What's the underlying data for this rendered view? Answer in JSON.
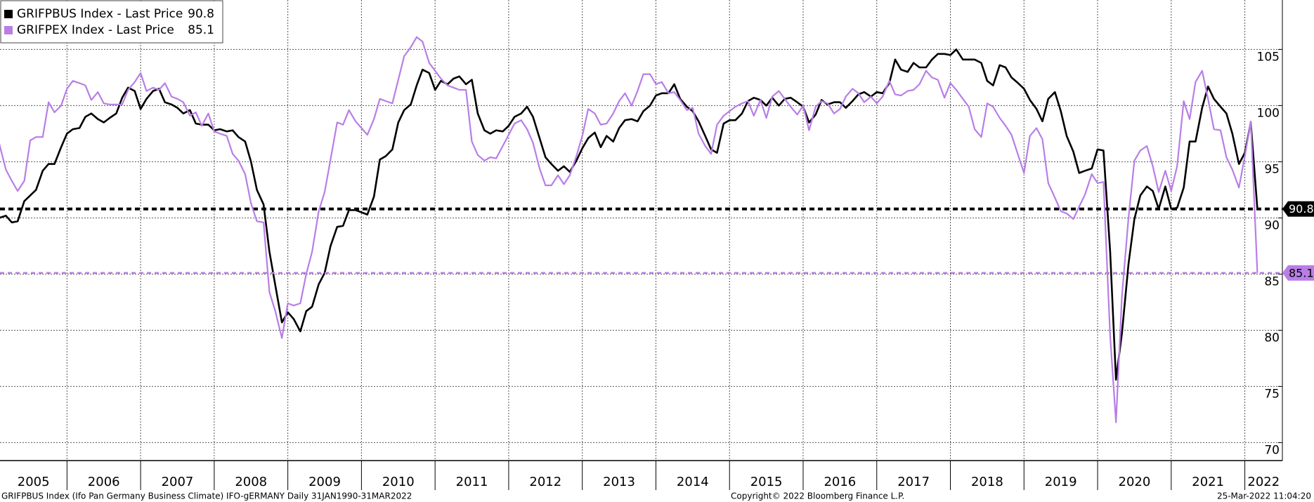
{
  "chart_data": {
    "type": "line",
    "x": [
      2005.08,
      2005.17,
      2005.25,
      2005.33,
      2005.42,
      2005.5,
      2005.58,
      2005.67,
      2005.75,
      2005.83,
      2005.92,
      2006,
      2006.08,
      2006.17,
      2006.25,
      2006.33,
      2006.42,
      2006.5,
      2006.58,
      2006.67,
      2006.75,
      2006.83,
      2006.92,
      2007,
      2007.08,
      2007.17,
      2007.25,
      2007.33,
      2007.42,
      2007.5,
      2007.58,
      2007.67,
      2007.75,
      2007.83,
      2007.92,
      2008,
      2008.08,
      2008.17,
      2008.25,
      2008.33,
      2008.42,
      2008.5,
      2008.58,
      2008.67,
      2008.75,
      2008.83,
      2008.92,
      2009,
      2009.08,
      2009.17,
      2009.25,
      2009.33,
      2009.42,
      2009.5,
      2009.58,
      2009.67,
      2009.75,
      2009.83,
      2009.92,
      2010,
      2010.08,
      2010.17,
      2010.25,
      2010.33,
      2010.42,
      2010.5,
      2010.58,
      2010.67,
      2010.75,
      2010.83,
      2010.92,
      2011,
      2011.08,
      2011.17,
      2011.25,
      2011.33,
      2011.42,
      2011.5,
      2011.58,
      2011.67,
      2011.75,
      2011.83,
      2011.92,
      2012,
      2012.08,
      2012.17,
      2012.25,
      2012.33,
      2012.42,
      2012.5,
      2012.58,
      2012.67,
      2012.75,
      2012.83,
      2012.92,
      2013,
      2013.08,
      2013.17,
      2013.25,
      2013.33,
      2013.42,
      2013.5,
      2013.58,
      2013.67,
      2013.75,
      2013.83,
      2013.92,
      2014,
      2014.08,
      2014.17,
      2014.25,
      2014.33,
      2014.42,
      2014.5,
      2014.58,
      2014.67,
      2014.75,
      2014.83,
      2014.92,
      2015,
      2015.08,
      2015.17,
      2015.25,
      2015.33,
      2015.42,
      2015.5,
      2015.58,
      2015.67,
      2015.75,
      2015.83,
      2015.92,
      2016,
      2016.08,
      2016.17,
      2016.25,
      2016.33,
      2016.42,
      2016.5,
      2016.58,
      2016.67,
      2016.75,
      2016.83,
      2016.92,
      2017,
      2017.08,
      2017.17,
      2017.25,
      2017.33,
      2017.42,
      2017.5,
      2017.58,
      2017.67,
      2017.75,
      2017.83,
      2017.92,
      2018,
      2018.08,
      2018.17,
      2018.25,
      2018.33,
      2018.42,
      2018.5,
      2018.58,
      2018.67,
      2018.75,
      2018.83,
      2018.92,
      2019,
      2019.08,
      2019.17,
      2019.25,
      2019.33,
      2019.42,
      2019.5,
      2019.58,
      2019.67,
      2019.75,
      2019.83,
      2019.92,
      2020,
      2020.08,
      2020.17,
      2020.25,
      2020.33,
      2020.42,
      2020.5,
      2020.58,
      2020.67,
      2020.75,
      2020.83,
      2020.92,
      2021,
      2021.08,
      2021.17,
      2021.25,
      2021.33,
      2021.42,
      2021.5,
      2021.58,
      2021.67,
      2021.75,
      2021.83,
      2021.92,
      2022,
      2022.08,
      2022.17
    ],
    "series": [
      {
        "name": "GRIFPBUS Index - Last Price",
        "color": "#000000",
        "values": [
          90,
          90.2,
          89.6,
          89.7,
          91.5,
          92,
          92.5,
          94.2,
          94.8,
          94.8,
          96.3,
          97.5,
          97.9,
          98,
          99,
          99.3,
          98.8,
          98.5,
          98.9,
          99.3,
          100.7,
          101.6,
          101.3,
          99.7,
          100.6,
          101.3,
          101.5,
          100.3,
          100.1,
          99.8,
          99.3,
          99.6,
          98.4,
          98.3,
          98.3,
          97.8,
          97.9,
          97.7,
          97.8,
          97.2,
          96.8,
          95,
          92.5,
          91.2,
          87,
          84,
          80.7,
          81.6,
          81,
          79.9,
          81.7,
          82.1,
          84.1,
          85.1,
          87.5,
          89.2,
          89.3,
          90.7,
          90.7,
          90.5,
          90.3,
          91.9,
          95.2,
          95.5,
          96.1,
          98.5,
          99.6,
          100.1,
          101.8,
          103.2,
          102.9,
          101.4,
          102.2,
          101.9,
          102.4,
          102.6,
          101.9,
          102.3,
          99.3,
          97.8,
          97.5,
          97.8,
          97.7,
          98.2,
          99,
          99.3,
          99.9,
          99,
          97.1,
          95.4,
          94.8,
          94.2,
          94.6,
          94.1,
          95.1,
          96.2,
          97.1,
          97.6,
          96.3,
          97.3,
          96.8,
          98,
          98.7,
          98.8,
          98.6,
          99.5,
          100,
          100.9,
          101.1,
          101.1,
          101.9,
          100.6,
          99.9,
          99.5,
          98.6,
          97.3,
          96.1,
          95.8,
          98.4,
          98.7,
          98.7,
          99.3,
          100.4,
          100.7,
          100.5,
          100,
          100.7,
          100,
          100.6,
          100.7,
          100.3,
          99.9,
          98.5,
          99.2,
          100.5,
          100.1,
          100.3,
          100.3,
          99.8,
          100.4,
          101,
          101.2,
          100.8,
          101.2,
          101.1,
          102,
          104.1,
          103.2,
          103,
          103.8,
          103.4,
          103.4,
          104.1,
          104.6,
          104.6,
          104.5,
          105,
          104.1,
          104.1,
          104.1,
          103.8,
          102.2,
          101.8,
          103.6,
          103.4,
          102.5,
          102,
          101.5,
          100.5,
          99.7,
          98.6,
          100.6,
          101.2,
          99.5,
          97.3,
          95.9,
          94,
          94.2,
          94.4,
          96.1,
          96,
          87,
          75.6,
          79.7,
          85.9,
          89.9,
          92,
          92.8,
          92.4,
          90.8,
          92.8,
          90.8,
          90.9,
          92.7,
          96.8,
          96.8,
          99.8,
          101.7,
          100.6,
          99.9,
          99.3,
          97.5,
          94.8,
          95.8,
          98.5,
          90.8
        ]
      },
      {
        "name": "GRIFPEX Index - Last Price",
        "color": "#b87ee6",
        "values": [
          96.6,
          94.3,
          93.3,
          92.4,
          93.3,
          96.9,
          97.2,
          97.2,
          100.3,
          99.4,
          100,
          101.5,
          102.2,
          102,
          101.8,
          100.5,
          101.2,
          100.2,
          100.1,
          100.1,
          100.1,
          101.4,
          102.1,
          102.9,
          101.3,
          101.6,
          101.4,
          102,
          100.8,
          100.6,
          100.3,
          99.1,
          99.4,
          98.2,
          99.3,
          97.7,
          97.5,
          97.3,
          95.7,
          95.1,
          93.9,
          91.3,
          89.7,
          89.6,
          83.4,
          81.7,
          79.3,
          82.4,
          82.2,
          82.4,
          85,
          87,
          90.6,
          92.3,
          95.2,
          98.5,
          98.3,
          99.6,
          98.6,
          98,
          97.4,
          98.8,
          100.6,
          100.4,
          100.2,
          102.3,
          104.4,
          105.2,
          106.1,
          105.7,
          103.8,
          103.1,
          102.4,
          101.8,
          101.6,
          101.4,
          101.4,
          96.8,
          95.6,
          95.1,
          95.4,
          95.3,
          96.4,
          97.4,
          98.4,
          98.7,
          97.9,
          96.7,
          94.4,
          92.9,
          92.9,
          93.8,
          93,
          93.8,
          95.5,
          97.3,
          99.7,
          99.3,
          98.3,
          98.4,
          99.3,
          100.4,
          101.1,
          100,
          101.3,
          102.8,
          102.8,
          101.9,
          102.1,
          101.1,
          101.2,
          100.5,
          99.6,
          99.8,
          97.5,
          96.4,
          95.7,
          98.3,
          99.1,
          99.5,
          99.9,
          100.2,
          100.4,
          99.1,
          100.5,
          98.9,
          100.8,
          101.3,
          100.6,
          99.9,
          99.2,
          100,
          97.8,
          99.9,
          100.4,
          100.2,
          99.3,
          99.7,
          100.8,
          101.5,
          101.1,
          100.3,
          100.8,
          100.2,
          100.8,
          102.2,
          101,
          100.9,
          101.3,
          101.4,
          101.9,
          103.1,
          102.5,
          102.3,
          100.7,
          102,
          101.4,
          100.6,
          99.9,
          97.9,
          97.2,
          100.2,
          99.9,
          98.9,
          98.2,
          97.4,
          95.6,
          94,
          97.3,
          98,
          97,
          93.1,
          91.8,
          90.6,
          90.4,
          89.9,
          91,
          92.1,
          93.9,
          93.1,
          93.2,
          79.5,
          71.8,
          83,
          90,
          95.1,
          96,
          96.4,
          94.6,
          92.3,
          94.2,
          92.4,
          94.6,
          100.4,
          98.8,
          102.1,
          103.1,
          100.6,
          97.9,
          97.8,
          95.4,
          94.3,
          92.7,
          95.5,
          98.6,
          85.1
        ]
      }
    ],
    "xlim": [
      2005.09,
      2022.51
    ],
    "xticks": [
      2005,
      2006,
      2007,
      2008,
      2009,
      2010,
      2011,
      2012,
      2013,
      2014,
      2015,
      2016,
      2017,
      2018,
      2019,
      2020,
      2021,
      2022
    ],
    "ylim": [
      68.4,
      109.4
    ],
    "yticks": [
      70,
      75,
      80,
      85,
      90,
      95,
      100,
      105
    ],
    "grid": true,
    "legend": "upper left",
    "footer_left": "GRIFPBUS Index (Ifo Pan Germany Business Climate) IFO-gERMANY  Daily 31JAN1990-31MAR2022",
    "footer_center": "Copyright© 2022 Bloomberg Finance L.P.",
    "footer_right": "25-Mar-2022 11:04:20"
  }
}
